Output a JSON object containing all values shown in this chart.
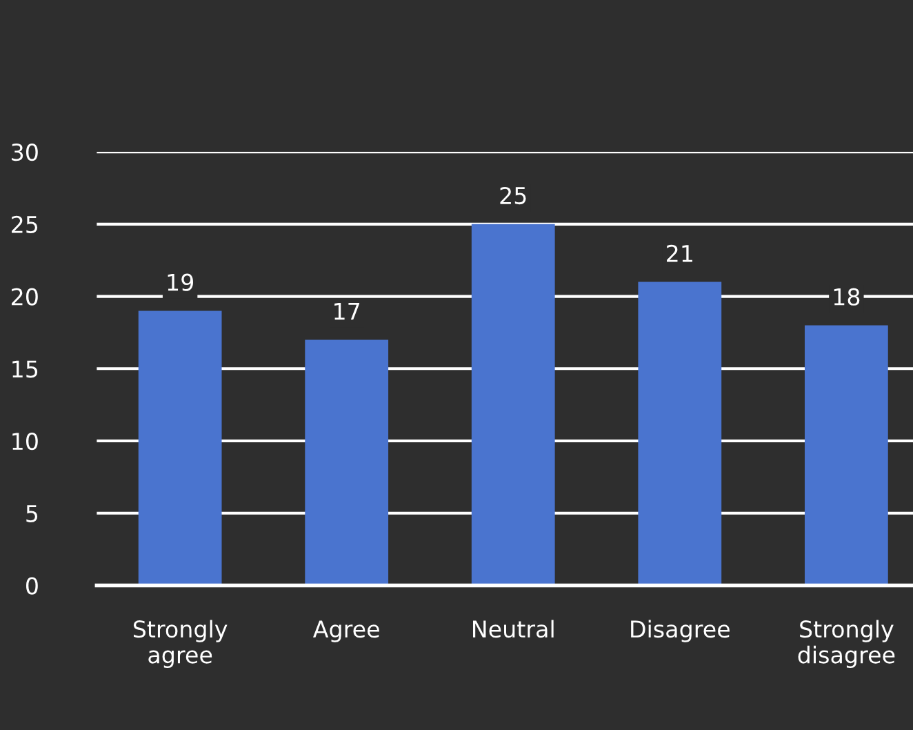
{
  "chart_data": {
    "type": "bar",
    "categories": [
      "Strongly agree",
      "Agree",
      "Neutral",
      "Disagree",
      "Strongly disagree"
    ],
    "values": [
      19,
      17,
      25,
      21,
      18
    ],
    "color": "#4a74cf",
    "ylim": [
      0,
      30
    ],
    "yticks": [
      0,
      5,
      10,
      15,
      20,
      25,
      30
    ],
    "grid": "y",
    "data_labels": true
  }
}
